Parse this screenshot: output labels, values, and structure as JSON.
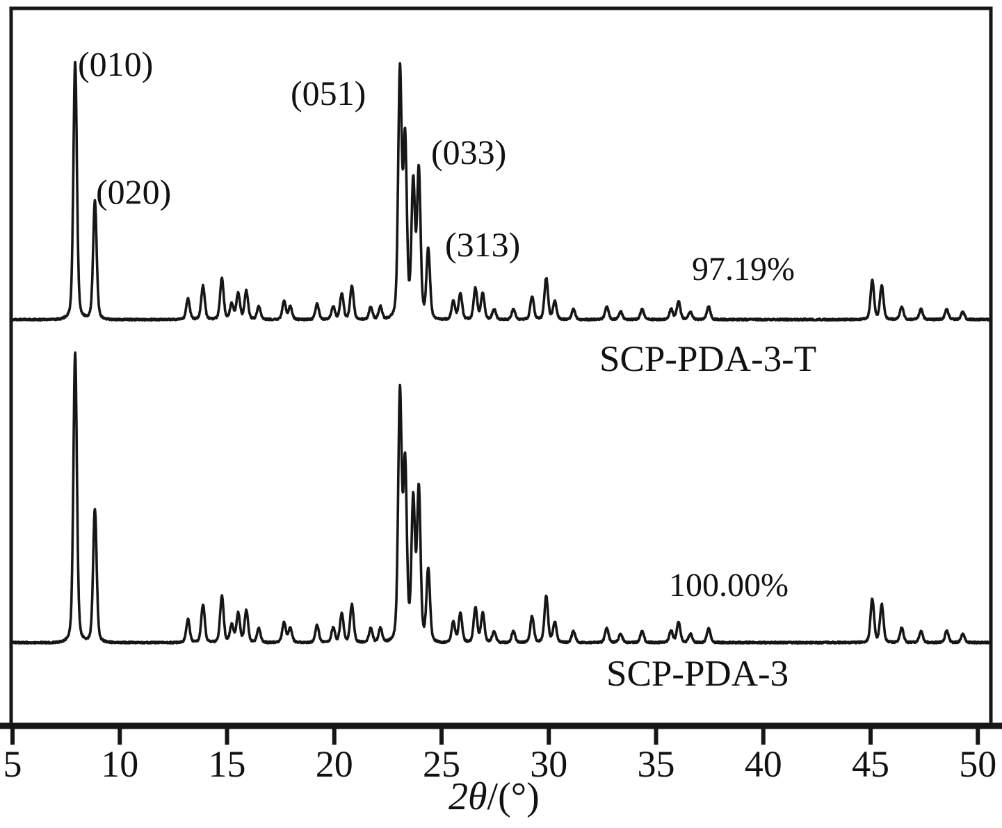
{
  "chart_data": {
    "type": "line",
    "title": "",
    "xlabel_parts": {
      "prefix": "2",
      "theta": "θ",
      "suffix": "/(°)"
    },
    "ylabel": "",
    "xlim": [
      5,
      50.55
    ],
    "x_ticks": [
      5,
      10,
      15,
      20,
      25,
      30,
      35,
      40,
      45,
      50
    ],
    "grid": false,
    "legend_position": "none",
    "line_color": "#161616",
    "peak_labels": [
      {
        "hkl": "(010)",
        "two_theta": 7.9
      },
      {
        "hkl": "(020)",
        "two_theta": 8.8
      },
      {
        "hkl": "(051)",
        "two_theta": 23.1
      },
      {
        "hkl": "(033)",
        "two_theta": 23.9
      },
      {
        "hkl": "(313)",
        "two_theta": 24.4
      }
    ],
    "series": [
      {
        "name": "SCP-PDA-3-T",
        "relative_crystallinity": "97.19%",
        "peaks": [
          [
            7.92,
            100
          ],
          [
            8.84,
            46
          ],
          [
            13.18,
            8
          ],
          [
            13.88,
            13
          ],
          [
            14.76,
            16
          ],
          [
            15.22,
            6
          ],
          [
            15.52,
            10
          ],
          [
            15.9,
            11
          ],
          [
            16.48,
            5
          ],
          [
            17.66,
            7
          ],
          [
            17.95,
            5
          ],
          [
            19.2,
            6
          ],
          [
            19.95,
            5
          ],
          [
            20.35,
            10
          ],
          [
            20.82,
            13
          ],
          [
            21.7,
            5
          ],
          [
            22.15,
            5
          ],
          [
            23.06,
            95
          ],
          [
            23.3,
            68
          ],
          [
            23.68,
            52
          ],
          [
            23.94,
            57
          ],
          [
            24.38,
            27
          ],
          [
            25.55,
            7
          ],
          [
            25.88,
            10
          ],
          [
            26.58,
            12
          ],
          [
            26.92,
            10
          ],
          [
            27.45,
            4
          ],
          [
            28.35,
            4
          ],
          [
            29.22,
            9
          ],
          [
            29.88,
            16
          ],
          [
            30.28,
            7
          ],
          [
            31.15,
            4
          ],
          [
            32.7,
            5
          ],
          [
            33.35,
            3
          ],
          [
            34.35,
            4
          ],
          [
            35.7,
            4
          ],
          [
            36.05,
            7
          ],
          [
            36.6,
            3
          ],
          [
            37.45,
            5
          ],
          [
            45.08,
            15
          ],
          [
            45.52,
            13
          ],
          [
            46.45,
            5
          ],
          [
            47.35,
            4
          ],
          [
            48.55,
            4
          ],
          [
            49.3,
            3
          ]
        ]
      },
      {
        "name": "SCP-PDA-3",
        "relative_crystallinity": "100.00%",
        "peaks": [
          [
            7.92,
            100
          ],
          [
            8.84,
            46
          ],
          [
            13.18,
            8
          ],
          [
            13.88,
            13
          ],
          [
            14.76,
            16
          ],
          [
            15.22,
            6
          ],
          [
            15.52,
            10
          ],
          [
            15.9,
            11
          ],
          [
            16.48,
            5
          ],
          [
            17.66,
            7
          ],
          [
            17.95,
            5
          ],
          [
            19.2,
            6
          ],
          [
            19.95,
            5
          ],
          [
            20.35,
            10
          ],
          [
            20.82,
            13
          ],
          [
            21.7,
            5
          ],
          [
            22.15,
            5
          ],
          [
            23.06,
            85
          ],
          [
            23.3,
            60
          ],
          [
            23.68,
            48
          ],
          [
            23.94,
            52
          ],
          [
            24.38,
            25
          ],
          [
            25.55,
            7
          ],
          [
            25.88,
            10
          ],
          [
            26.58,
            12
          ],
          [
            26.92,
            10
          ],
          [
            27.45,
            4
          ],
          [
            28.35,
            4
          ],
          [
            29.22,
            9
          ],
          [
            29.88,
            16
          ],
          [
            30.28,
            7
          ],
          [
            31.15,
            4
          ],
          [
            32.7,
            5
          ],
          [
            33.35,
            3
          ],
          [
            34.35,
            4
          ],
          [
            35.7,
            4
          ],
          [
            36.05,
            7
          ],
          [
            36.6,
            3
          ],
          [
            37.45,
            5
          ],
          [
            45.08,
            15
          ],
          [
            45.52,
            13
          ],
          [
            46.45,
            5
          ],
          [
            47.35,
            4
          ],
          [
            48.55,
            4
          ],
          [
            49.3,
            3
          ]
        ]
      }
    ]
  }
}
